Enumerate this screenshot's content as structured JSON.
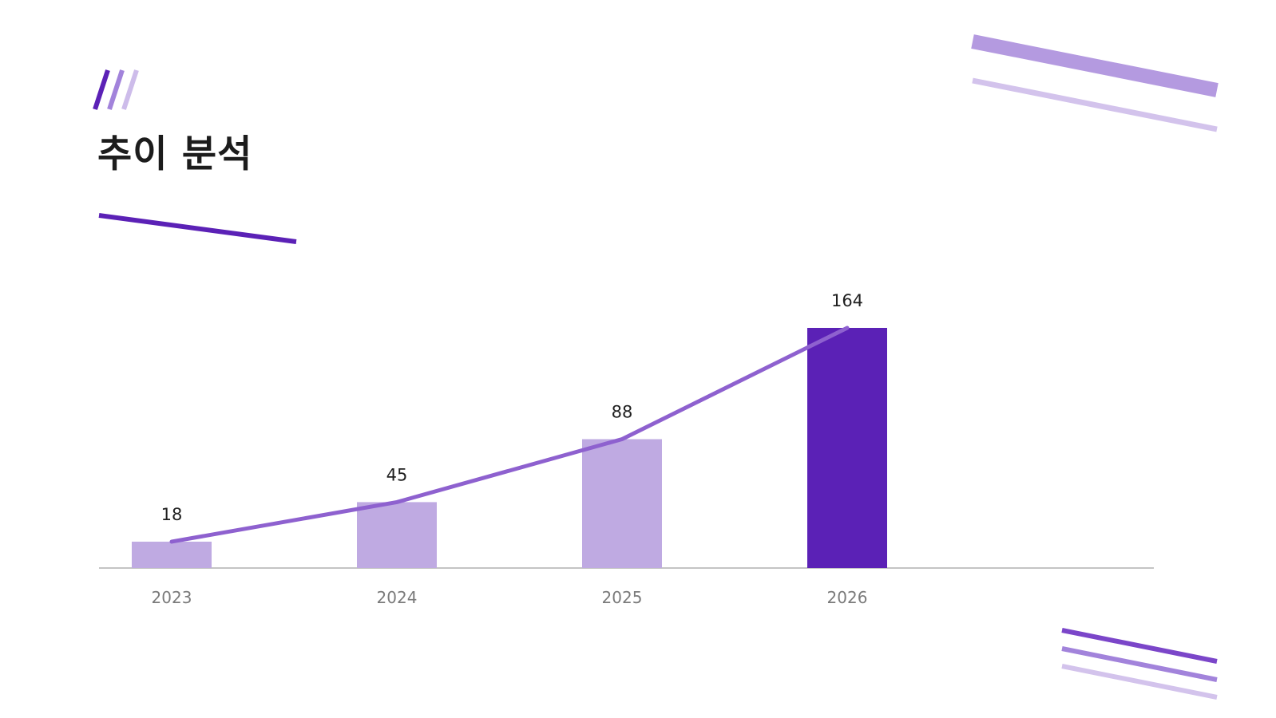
{
  "title": "추이 분석",
  "colors": {
    "accent": "#5b21b6",
    "bar_light": "#bfaae2",
    "line": "#8e61cf",
    "axis": "#c4c4c4",
    "deco_mid": "#b49ae0",
    "deco_light": "#d3c3ec"
  },
  "chart_data": {
    "type": "bar",
    "categories": [
      "2023",
      "2024",
      "2025",
      "2026"
    ],
    "values": [
      18,
      45,
      88,
      164
    ],
    "highlight_index": 3,
    "overlay_line": true,
    "title": "",
    "xlabel": "",
    "ylabel": "",
    "ylim": [
      0,
      164
    ],
    "grid": false,
    "legend": "none"
  }
}
